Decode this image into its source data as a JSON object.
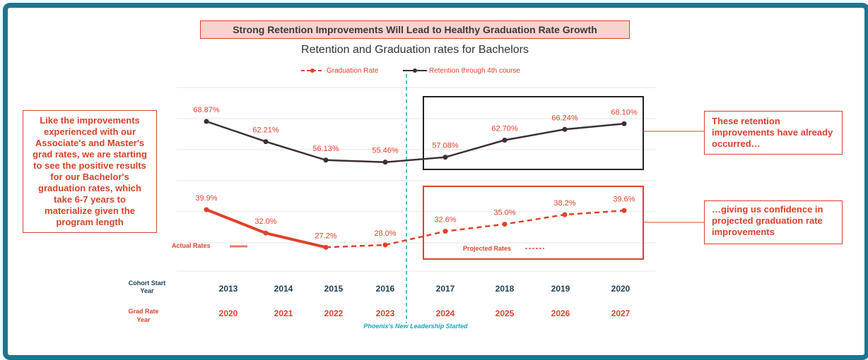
{
  "banner": "Strong Retention Improvements Will Lead to Healthy Graduation Rate Growth",
  "notes": {
    "left": "Like the improvements experienced with our Associate's and Master's grad rates, we are starting to see the positive results for our Bachelor's graduation rates, which take 6-7 years to materialize given the program length",
    "right_top": "These retention improvements have already occurred…",
    "right_bottom": "…giving us confidence in projected graduation rate improvements"
  },
  "row_labels": {
    "cohort_line1": "Cohort Start",
    "cohort_line2": "Year",
    "grad_line1": "Grad Rate",
    "grad_line2": "Year"
  },
  "annotations": {
    "leadership": "Phoenix's New Leadership Started",
    "actual": "Actual Rates",
    "projected": "Projected Rates"
  },
  "colors": {
    "graduation": "#e0412a",
    "retention": "#3b2f33",
    "accent_teal": "#1c7590",
    "divider": "#1aa6b7"
  },
  "chart_data": {
    "type": "line",
    "title": "Retention and Graduation rates for Bachelors",
    "categories": [
      "2013",
      "2014",
      "2015",
      "2016",
      "2017",
      "2018",
      "2019",
      "2020"
    ],
    "grad_years": [
      "2020",
      "2021",
      "2022",
      "2023",
      "2024",
      "2025",
      "2026",
      "2027"
    ],
    "series": [
      {
        "name": "Graduation Rate",
        "values": [
          39.9,
          32.0,
          27.2,
          28.0,
          32.6,
          35.0,
          38.2,
          39.6
        ],
        "labels": [
          "39.9%",
          "32.0%",
          "27.2%",
          "28.0%",
          "32.6%",
          "35.0%",
          "38.2%",
          "39.6%"
        ],
        "actual_through_index": 2
      },
      {
        "name": "Retention through 4th course",
        "values": [
          68.87,
          62.21,
          56.13,
          55.46,
          57.08,
          62.7,
          66.24,
          68.1
        ],
        "labels": [
          "68.87%",
          "62.21%",
          "56.13%",
          "55.46%",
          "57.08%",
          "62.70%",
          "66.24%",
          "68.10%"
        ]
      }
    ],
    "legend_position": "top",
    "grid": true
  }
}
